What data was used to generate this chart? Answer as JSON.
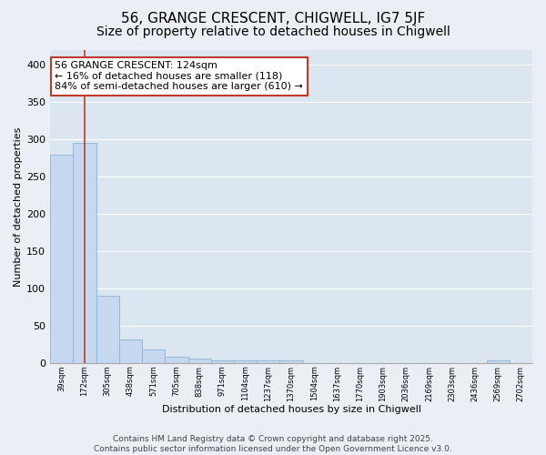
{
  "title": "56, GRANGE CRESCENT, CHIGWELL, IG7 5JF",
  "subtitle": "Size of property relative to detached houses in Chigwell",
  "xlabel": "Distribution of detached houses by size in Chigwell",
  "ylabel": "Number of detached properties",
  "bar_values": [
    280,
    295,
    90,
    32,
    18,
    8,
    6,
    4,
    3,
    3,
    3,
    0,
    0,
    0,
    0,
    0,
    0,
    0,
    0,
    3,
    0
  ],
  "bar_labels": [
    "39sqm",
    "172sqm",
    "305sqm",
    "438sqm",
    "571sqm",
    "705sqm",
    "838sqm",
    "971sqm",
    "1104sqm",
    "1237sqm",
    "1370sqm",
    "1504sqm",
    "1637sqm",
    "1770sqm",
    "1903sqm",
    "2036sqm",
    "2169sqm",
    "2303sqm",
    "2436sqm",
    "2569sqm",
    "2702sqm"
  ],
  "bar_color": "#c5d8ef",
  "bar_edgecolor": "#8ab4d8",
  "background_color": "#eaeef5",
  "plot_bg_color": "#dce6f0",
  "grid_color": "#ffffff",
  "vline_x": 1.0,
  "vline_color": "#c0392b",
  "annotation_text": "56 GRANGE CRESCENT: 124sqm\n← 16% of detached houses are smaller (118)\n84% of semi-detached houses are larger (610) →",
  "annotation_box_facecolor": "#ffffff",
  "annotation_border_color": "#c0392b",
  "ylim": [
    0,
    420
  ],
  "yticks": [
    0,
    50,
    100,
    150,
    200,
    250,
    300,
    350,
    400
  ],
  "title_fontsize": 11,
  "subtitle_fontsize": 10,
  "annotation_fontsize": 8,
  "ylabel_fontsize": 8,
  "xlabel_fontsize": 8,
  "xtick_fontsize": 6,
  "ytick_fontsize": 8,
  "footer_text": "Contains HM Land Registry data © Crown copyright and database right 2025.\nContains public sector information licensed under the Open Government Licence v3.0.",
  "footer_fontsize": 6.5
}
